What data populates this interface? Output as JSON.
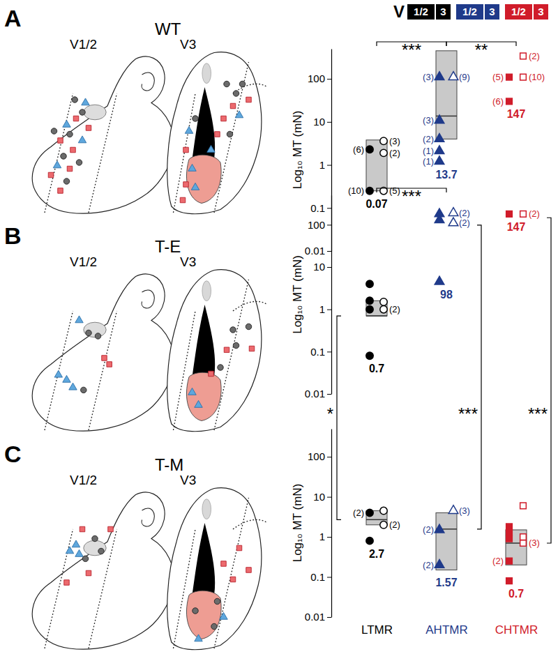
{
  "chart_data": [
    {
      "type": "box",
      "panel": "A",
      "title": "WT",
      "region_labels": [
        "V1/2",
        "V3"
      ],
      "y_label": "Log₁₀ MT (mN)",
      "categories": [
        null,
        null,
        null
      ],
      "tick_labels": "y",
      "log": "y",
      "ylim": [
        0.01,
        500
      ],
      "yticks": [
        0.01,
        0.1,
        1,
        10,
        100
      ],
      "legend": "top-right",
      "legend_title": "V",
      "colors": [
        "#000000",
        "#1f3a8a",
        "#d01c2a"
      ],
      "data_labels": true,
      "medians": [
        0.07,
        13.7,
        147
      ],
      "box_low": [
        0.25,
        4,
        null
      ],
      "box_high": [
        3.8,
        450,
        null
      ],
      "comparisons": [
        {
          "text": "***",
          "x": [
            0,
            1
          ]
        },
        {
          "text": "**",
          "x": [
            1,
            2
          ]
        }
      ],
      "series": [
        {
          "name": "1/2",
          "color": "#000000",
          "marker": "circle",
          "x": [
            0,
            0
          ],
          "values": [
            2.3,
            0.25
          ],
          "count_labels": [
            "(6)",
            "(10)"
          ]
        },
        {
          "name": "3",
          "color": "#000000",
          "marker": "open-circle",
          "x": [
            0,
            0,
            0
          ],
          "values": [
            3.6,
            1.9,
            0.25
          ],
          "count_labels": [
            "(3)",
            "(2)",
            "(5)"
          ]
        },
        {
          "name": "1/2",
          "color": "#1f3a8a",
          "marker": "triangle",
          "x": [
            1,
            1,
            1,
            1,
            1
          ],
          "values": [
            110,
            10.8,
            4,
            2.1,
            1.2
          ],
          "count_labels": [
            "(3)",
            "(3)",
            "(2)",
            "(1)",
            "(1)"
          ]
        },
        {
          "name": "3",
          "color": "#1f3a8a",
          "marker": "open-triangle",
          "x": [
            1
          ],
          "values": [
            110
          ],
          "count_labels": [
            "(9)"
          ]
        },
        {
          "name": "1/2",
          "color": "#d01c2a",
          "marker": "square",
          "x": [
            2,
            2
          ],
          "values": [
            110,
            30
          ],
          "count_labels": [
            "(5)",
            "(6)"
          ]
        },
        {
          "name": "3",
          "color": "#d01c2a",
          "marker": "open-square",
          "x": [
            2,
            2
          ],
          "values": [
            340,
            110
          ],
          "count_labels": [
            "(2)",
            "(10)"
          ]
        }
      ]
    },
    {
      "type": "box",
      "panel": "B",
      "title": "T-E",
      "region_labels": [
        "V1/2",
        "V3"
      ],
      "y_label": "Log₁₀ MT (mN)",
      "categories": [
        null,
        null,
        null
      ],
      "tick_labels": "y",
      "log": "y",
      "ylim": [
        0.01,
        500
      ],
      "yticks": [
        0.01,
        0.1,
        1,
        10,
        100
      ],
      "colors": [
        "#000000",
        "#1f3a8a",
        "#d01c2a"
      ],
      "data_labels": true,
      "medians": [
        0.7,
        98,
        147
      ],
      "box_low": [
        0.7,
        null,
        null
      ],
      "box_high": [
        1.6,
        null,
        null
      ],
      "comparisons": [
        {
          "text": "***",
          "x": [
            0,
            1
          ]
        }
      ],
      "comparisons_with_next": [
        {
          "text": "*",
          "x": 0
        },
        {
          "text": "***",
          "x": 1
        },
        {
          "text": "***",
          "x": 2
        }
      ],
      "series": [
        {
          "color": "#000000",
          "marker": "circle",
          "x": [
            0,
            0,
            0,
            0
          ],
          "values": [
            4,
            1.6,
            1,
            0.08
          ],
          "count_labels": [
            null,
            null,
            null,
            null
          ]
        },
        {
          "color": "#000000",
          "marker": "open-circle",
          "x": [
            0,
            0
          ],
          "values": [
            1.5,
            1
          ],
          "count_labels": [
            null,
            "(2)"
          ]
        },
        {
          "color": "#1f3a8a",
          "marker": "triangle",
          "x": [
            1,
            1,
            1
          ],
          "values": [
            180,
            130,
            4.5
          ],
          "count_labels": [
            null,
            null,
            null
          ]
        },
        {
          "color": "#1f3a8a",
          "marker": "open-triangle",
          "x": [
            1,
            1
          ],
          "values": [
            190,
            110
          ],
          "count_labels": [
            "(2)",
            "(2)"
          ]
        },
        {
          "color": "#d01c2a",
          "marker": "square",
          "x": [
            2
          ],
          "values": [
            180
          ],
          "count_labels": [
            null
          ]
        },
        {
          "color": "#d01c2a",
          "marker": "open-square",
          "x": [
            2
          ],
          "values": [
            180
          ],
          "count_labels": [
            "(2)"
          ]
        }
      ]
    },
    {
      "type": "box",
      "panel": "C",
      "title": "T-M",
      "region_labels": [
        "V1/2",
        "V3"
      ],
      "y_label": "Log₁₀ MT (mN)",
      "categories": [
        "LTMR",
        "AHTMR",
        "CHTMR"
      ],
      "log": "y",
      "ylim": [
        0.01,
        500
      ],
      "yticks": [
        0.01,
        0.1,
        1,
        10,
        100
      ],
      "colors": [
        "#000000",
        "#1f3a8a",
        "#d01c2a"
      ],
      "data_labels": true,
      "medians": [
        2.7,
        1.57,
        0.7
      ],
      "box_low": [
        2,
        0.15,
        0.2
      ],
      "box_high": [
        4.5,
        4,
        1.5
      ],
      "series": [
        {
          "color": "#000000",
          "marker": "circle",
          "x": [
            0,
            0
          ],
          "values": [
            4,
            0.8
          ],
          "count_labels": [
            "(2)",
            null
          ]
        },
        {
          "color": "#000000",
          "marker": "open-circle",
          "x": [
            0,
            0
          ],
          "values": [
            4.5,
            2
          ],
          "count_labels": [
            null,
            "(2)"
          ]
        },
        {
          "color": "#1f3a8a",
          "marker": "triangle",
          "x": [
            1,
            1
          ],
          "values": [
            1.5,
            0.2
          ],
          "count_labels": [
            "(2)",
            "(2)"
          ]
        },
        {
          "color": "#1f3a8a",
          "marker": "open-triangle",
          "x": [
            1
          ],
          "values": [
            4.5
          ],
          "count_labels": [
            "(3)"
          ]
        },
        {
          "color": "#d01c2a",
          "marker": "square",
          "x": [
            2,
            2,
            2,
            2,
            2
          ],
          "values": [
            1.8,
            1.3,
            0.9,
            0.25,
            0.08
          ],
          "count_labels": [
            null,
            null,
            null,
            "(2)",
            null
          ]
        },
        {
          "color": "#d01c2a",
          "marker": "open-square",
          "x": [
            2,
            2,
            2
          ],
          "values": [
            6,
            1,
            0.7
          ],
          "count_labels": [
            null,
            null,
            "(3)"
          ]
        }
      ]
    }
  ]
}
